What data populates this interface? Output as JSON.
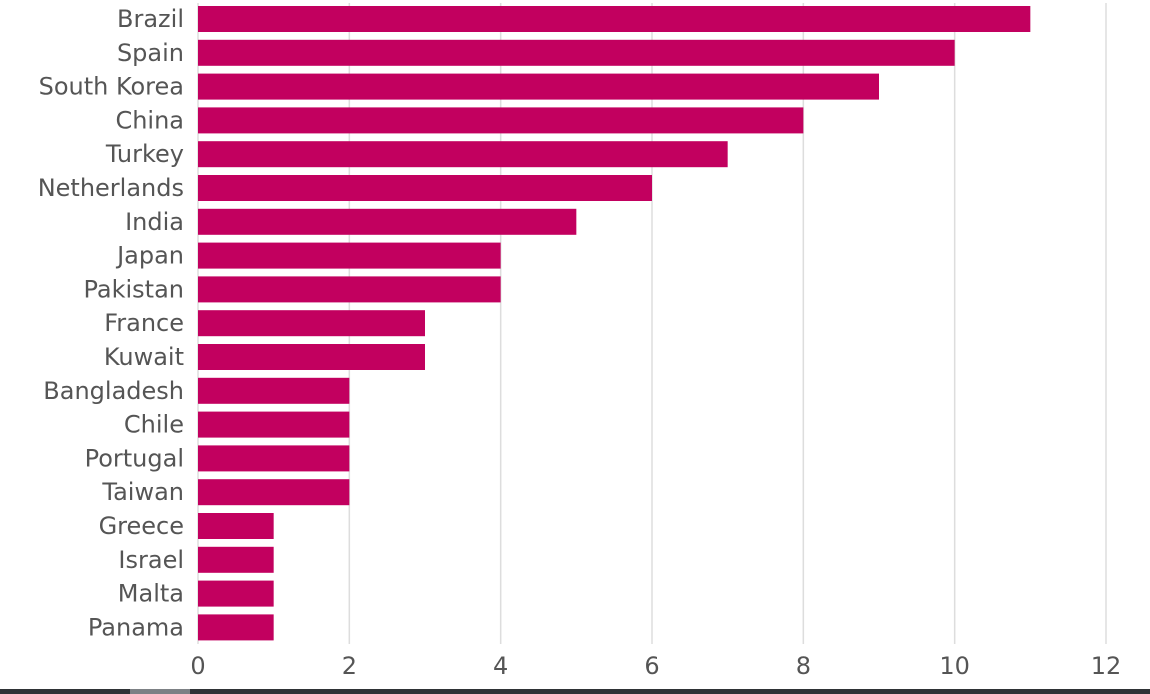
{
  "chart_data": {
    "type": "bar",
    "orientation": "horizontal",
    "categories": [
      "Brazil",
      "Spain",
      "South Korea",
      "China",
      "Turkey",
      "Netherlands",
      "India",
      "Japan",
      "Pakistan",
      "France",
      "Kuwait",
      "Bangladesh",
      "Chile",
      "Portugal",
      "Taiwan",
      "Greece",
      "Israel",
      "Malta",
      "Panama"
    ],
    "values": [
      11,
      10,
      9,
      8,
      7,
      6,
      5,
      4,
      4,
      3,
      3,
      2,
      2,
      2,
      2,
      1,
      1,
      1,
      1
    ],
    "xlim": [
      0,
      12
    ],
    "xticks": [
      "0",
      "2",
      "4",
      "6",
      "8",
      "10",
      "12"
    ],
    "grid": true,
    "bar_color": "#c2005f",
    "title": "",
    "xlabel": "",
    "ylabel": ""
  }
}
